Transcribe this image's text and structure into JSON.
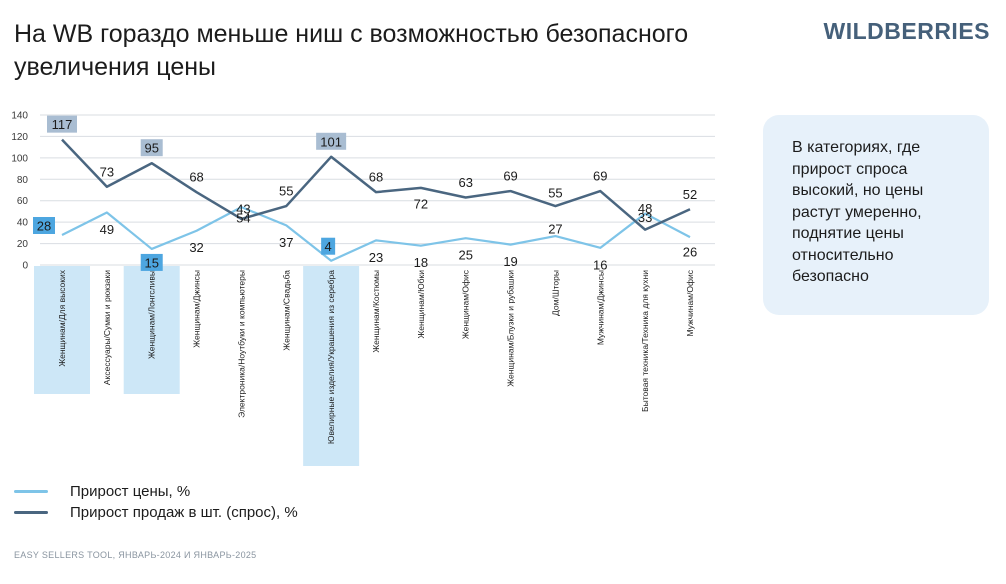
{
  "header": {
    "title": "На WB гораздо меньше ниш с возможностью безопасного увеличения цены",
    "brand": "WILDBERRIES"
  },
  "callout": {
    "text": "В категориях, где прирост спроса высокий, но цены растут умеренно, поднятие цены относительно безопасно"
  },
  "footer": {
    "source": "EASY SELLERS TOOL, ЯНВАРЬ-2024 И ЯНВАРЬ-2025"
  },
  "colors": {
    "price_line": "#7ec4e8",
    "demand_line": "#4a6680",
    "highlight_fill": "#cde7f7",
    "demand_label_bg": "#a9bdd2",
    "price_label_bg": "#4da6e0",
    "grid": "#d9dde2"
  },
  "chart_data": {
    "type": "line",
    "categories": [
      "Женщинам/Для высоких",
      "Аксессуары/Сумки и рюкзаки",
      "Женщинам/Лонгсливы",
      "Женщинам/Джинсы",
      "Электроника/Ноутбуки и компьютеры",
      "Женщинам/Свадьба",
      "Ювелирные изделия/Украшения из серебра",
      "Женщинам/Костюмы",
      "Женщинам/Юбки",
      "Женщинам/Офис",
      "Женщинам/Блузки и рубашки",
      "Дом/Шторы",
      "Мужчинам/Джинсы",
      "Бытовая техника/Техника для кухни",
      "Мужчинам/Офис"
    ],
    "series": [
      {
        "name": "Прирост цены, %",
        "key": "price",
        "values": [
          28,
          49,
          15,
          32,
          54,
          37,
          4,
          23,
          18,
          25,
          19,
          27,
          16,
          48,
          26
        ]
      },
      {
        "name": "Прирост продаж в шт. (спрос), %",
        "key": "demand",
        "values": [
          117,
          73,
          95,
          68,
          43,
          55,
          101,
          68,
          72,
          63,
          69,
          55,
          69,
          33,
          52
        ]
      }
    ],
    "highlighted_categories": [
      0,
      2,
      6
    ],
    "ylim": [
      0,
      140
    ],
    "yticks": [
      0,
      20,
      40,
      60,
      80,
      100,
      120,
      140
    ],
    "grid": true,
    "legend": "bottom-left"
  }
}
